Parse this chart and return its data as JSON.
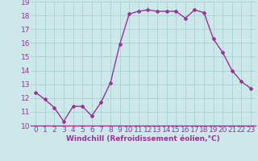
{
  "x": [
    0,
    1,
    2,
    3,
    4,
    5,
    6,
    7,
    8,
    9,
    10,
    11,
    12,
    13,
    14,
    15,
    16,
    17,
    18,
    19,
    20,
    21,
    22,
    23
  ],
  "y": [
    12.4,
    11.9,
    11.3,
    10.3,
    11.4,
    11.4,
    10.7,
    11.7,
    13.1,
    15.9,
    18.1,
    18.3,
    18.4,
    18.3,
    18.3,
    18.3,
    17.8,
    18.4,
    18.2,
    16.3,
    15.3,
    14.0,
    13.2,
    12.7
  ],
  "line_color": "#993399",
  "marker": "D",
  "marker_size": 2,
  "bg_color": "#cce8e8",
  "grid_color": "#aad4d4",
  "xlabel": "Windchill (Refroidissement éolien,°C)",
  "xlabel_color": "#993399",
  "tick_color": "#993399",
  "ylim": [
    10,
    19
  ],
  "xlim": [
    -0.5,
    23.5
  ],
  "yticks": [
    10,
    11,
    12,
    13,
    14,
    15,
    16,
    17,
    18,
    19
  ],
  "xticks": [
    0,
    1,
    2,
    3,
    4,
    5,
    6,
    7,
    8,
    9,
    10,
    11,
    12,
    13,
    14,
    15,
    16,
    17,
    18,
    19,
    20,
    21,
    22,
    23
  ],
  "font_size": 6.5,
  "line_width": 1.0
}
